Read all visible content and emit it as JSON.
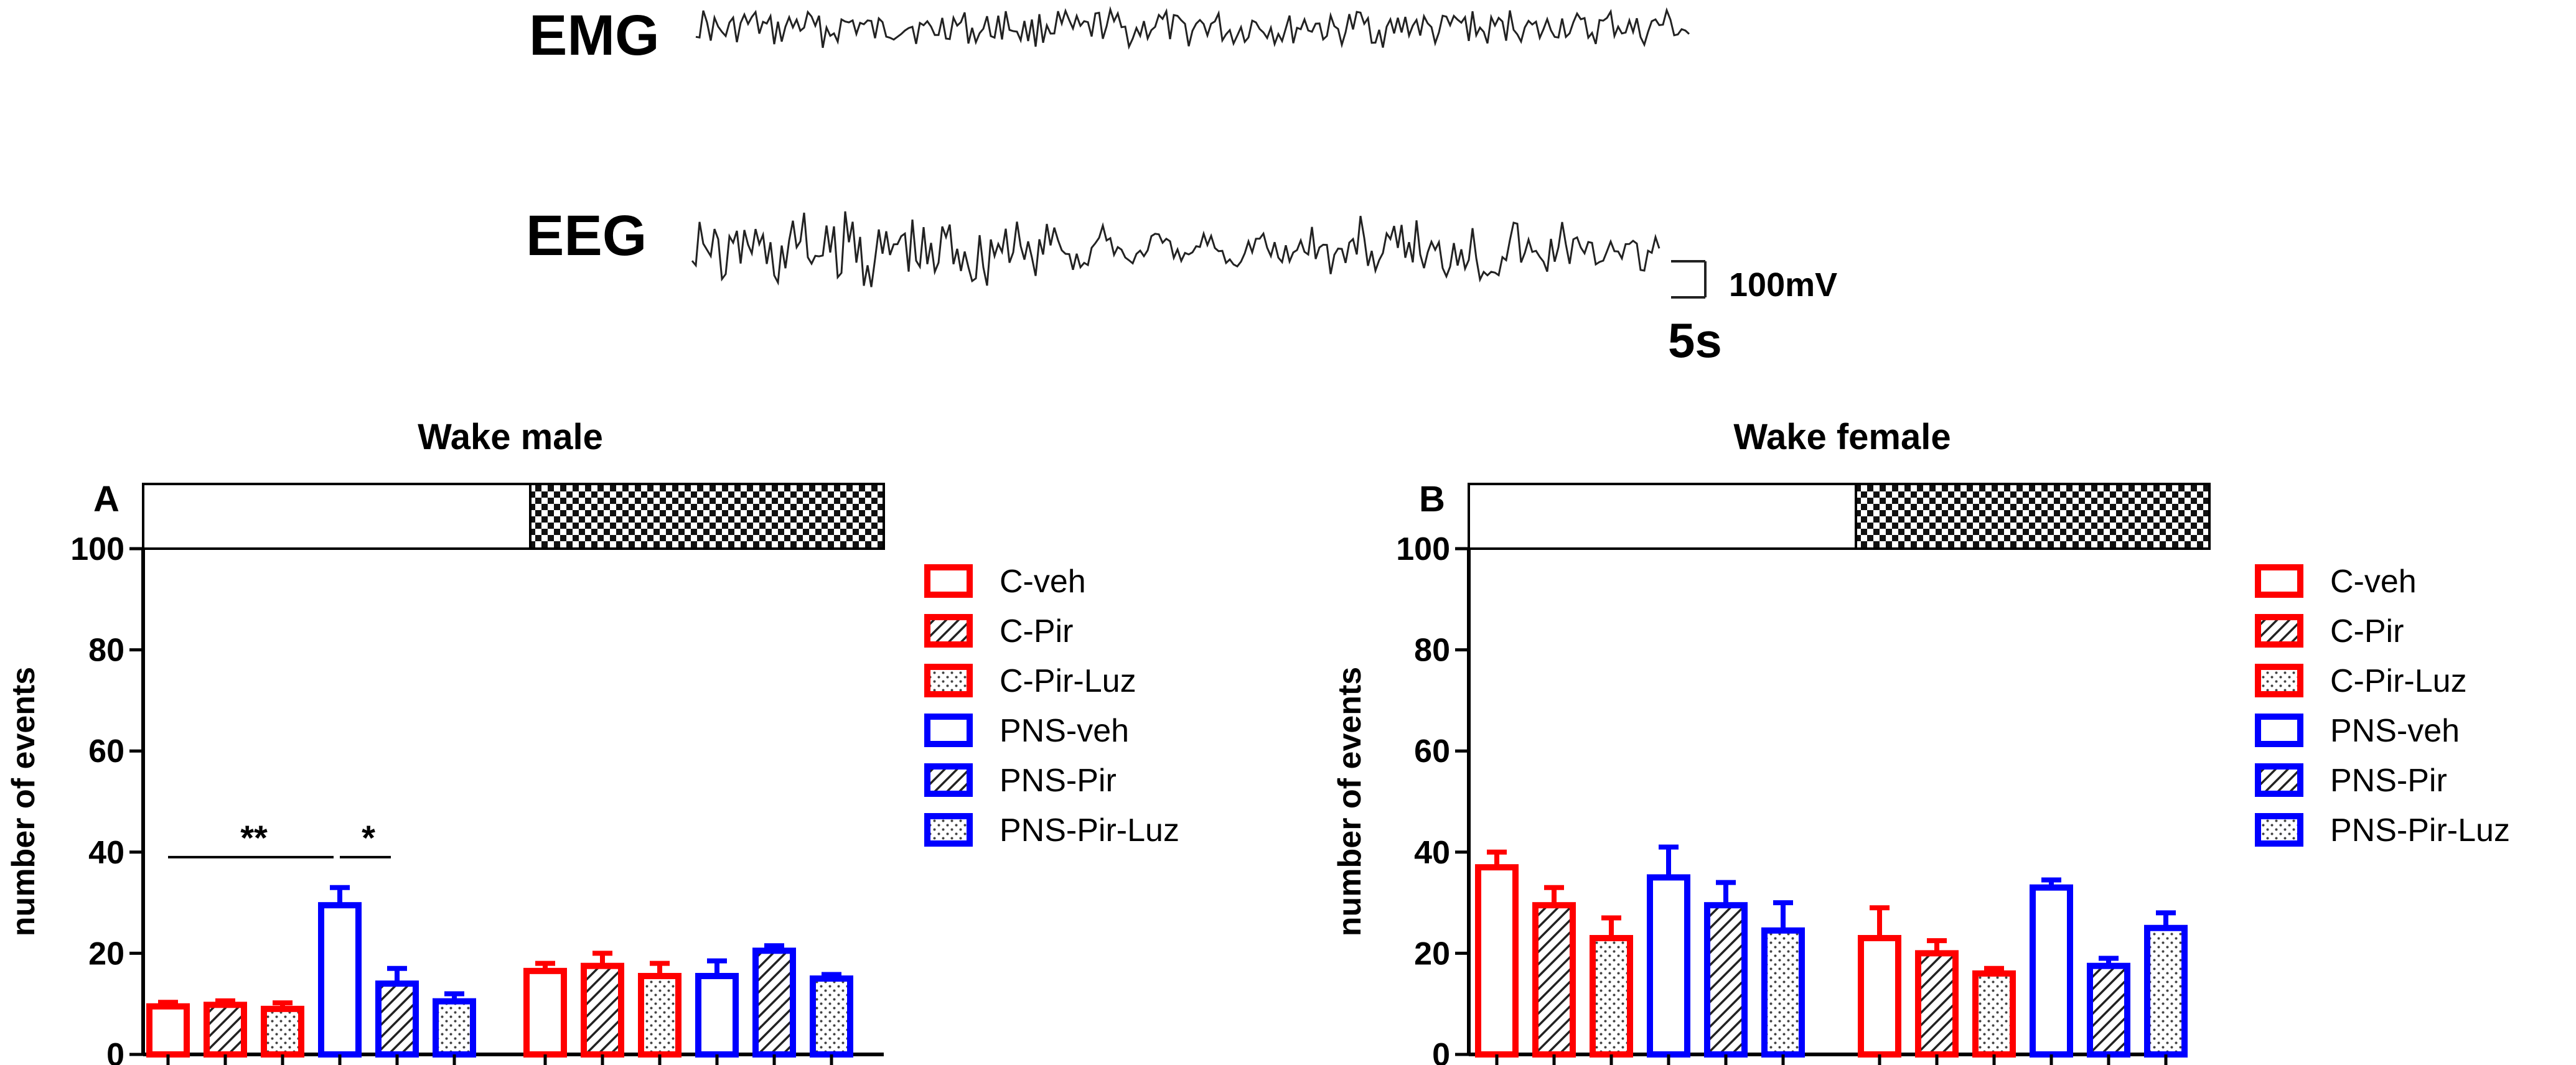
{
  "traces": {
    "emg_label": "EMG",
    "eeg_label": "EEG",
    "scale_voltage": "100mV",
    "scale_time": "5s"
  },
  "legend_entries": [
    {
      "label": "C-veh",
      "color": "#ff0000",
      "pattern": "open"
    },
    {
      "label": "C-Pir",
      "color": "#ff0000",
      "pattern": "hatched"
    },
    {
      "label": "C-Pir-Luz",
      "color": "#ff0000",
      "pattern": "dotted"
    },
    {
      "label": "PNS-veh",
      "color": "#0000ff",
      "pattern": "open"
    },
    {
      "label": "PNS-Pir",
      "color": "#0000ff",
      "pattern": "hatched"
    },
    {
      "label": "PNS-Pir-Luz",
      "color": "#0000ff",
      "pattern": "dotted"
    }
  ],
  "chart_data": [
    {
      "type": "bar",
      "panel_label": "A",
      "title": "Wake male",
      "xlabel": "",
      "ylabel": "number of events",
      "ylim": [
        0,
        100
      ],
      "yticks": [
        0,
        20,
        40,
        60,
        80,
        100
      ],
      "phases": [
        "light",
        "dark"
      ],
      "series": [
        {
          "name": "C-veh",
          "values": [
            9.5,
            16.5
          ],
          "errors": [
            0.8,
            1.5
          ]
        },
        {
          "name": "C-Pir",
          "values": [
            9.8,
            17.5
          ],
          "errors": [
            0.8,
            2.5
          ]
        },
        {
          "name": "C-Pir-Luz",
          "values": [
            9.0,
            15.5
          ],
          "errors": [
            1.2,
            2.5
          ]
        },
        {
          "name": "PNS-veh",
          "values": [
            29.5,
            15.5
          ],
          "errors": [
            3.5,
            3.0
          ]
        },
        {
          "name": "PNS-Pir",
          "values": [
            14.0,
            20.5
          ],
          "errors": [
            3.0,
            1.0
          ]
        },
        {
          "name": "PNS-Pir-Luz",
          "values": [
            10.5,
            15.0
          ],
          "errors": [
            1.5,
            0.8
          ]
        }
      ],
      "significance": [
        {
          "label": "**",
          "from_series": "C-veh",
          "to_series": "PNS-veh",
          "phase": "light",
          "y": 39
        },
        {
          "label": "*",
          "from_series": "PNS-veh",
          "to_series": "PNS-Pir",
          "phase": "light",
          "y": 39
        }
      ]
    },
    {
      "type": "bar",
      "panel_label": "B",
      "title": "Wake female",
      "xlabel": "",
      "ylabel": "number of events",
      "ylim": [
        0,
        100
      ],
      "yticks": [
        0,
        20,
        40,
        60,
        80,
        100
      ],
      "phases": [
        "light",
        "dark"
      ],
      "series": [
        {
          "name": "C-veh",
          "values": [
            37.0,
            23.0
          ],
          "errors": [
            3.0,
            6.0
          ]
        },
        {
          "name": "C-Pir",
          "values": [
            29.5,
            20.0
          ],
          "errors": [
            3.5,
            2.5
          ]
        },
        {
          "name": "C-Pir-Luz",
          "values": [
            23.0,
            16.0
          ],
          "errors": [
            4.0,
            1.0
          ]
        },
        {
          "name": "PNS-veh",
          "values": [
            35.0,
            33.0
          ],
          "errors": [
            6.0,
            1.5
          ]
        },
        {
          "name": "PNS-Pir",
          "values": [
            29.5,
            17.5
          ],
          "errors": [
            4.5,
            1.5
          ]
        },
        {
          "name": "PNS-Pir-Luz",
          "values": [
            24.5,
            25.0
          ],
          "errors": [
            5.5,
            3.0
          ]
        }
      ],
      "significance": []
    }
  ]
}
